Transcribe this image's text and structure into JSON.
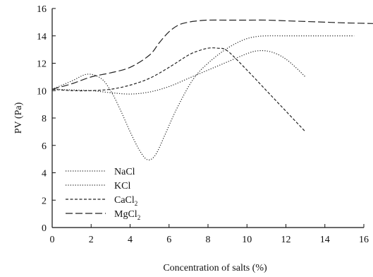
{
  "chart_data": {
    "type": "line",
    "title": "",
    "xlabel": "Concentration of salts (%)",
    "ylabel": "PV (Pa)",
    "xlim": [
      0,
      16
    ],
    "ylim": [
      0,
      16
    ],
    "xticks": [
      0,
      2,
      4,
      6,
      8,
      10,
      12,
      14,
      16
    ],
    "yticks": [
      0,
      2,
      4,
      6,
      8,
      10,
      12,
      14,
      16
    ],
    "grid": false,
    "legend_position": "bottom-left",
    "series": [
      {
        "name": "NaCl",
        "style": "dotted",
        "color": "#222222",
        "x": [
          0,
          1,
          1.8,
          2.5,
          3,
          3.5,
          4,
          4.5,
          4.9,
          5.3,
          5.8,
          6.3,
          7,
          7.5,
          8,
          8.5,
          9,
          9.5,
          10,
          10.5,
          11,
          12,
          13,
          14,
          15.5
        ],
        "y": [
          10.1,
          10.7,
          11.2,
          10.9,
          10.0,
          8.6,
          7.0,
          5.6,
          4.95,
          5.3,
          6.8,
          8.4,
          10.3,
          11.3,
          12.0,
          12.6,
          13.1,
          13.5,
          13.8,
          13.95,
          14.0,
          14.0,
          14.0,
          14.0,
          14.0
        ]
      },
      {
        "name": "KCl",
        "style": "dotted",
        "color": "#222222",
        "x": [
          0,
          1,
          2,
          3,
          4,
          5,
          6,
          7,
          8,
          9,
          10,
          10.5,
          11,
          11.5,
          12,
          12.5,
          13
        ],
        "y": [
          10.1,
          10.05,
          10.0,
          9.85,
          9.75,
          9.9,
          10.3,
          10.9,
          11.5,
          12.1,
          12.7,
          12.9,
          12.9,
          12.7,
          12.3,
          11.7,
          11.0
        ]
      },
      {
        "name": "CaCl2",
        "style": "dashed",
        "color": "#222222",
        "x": [
          0,
          1,
          2,
          3,
          4,
          5,
          6,
          7,
          7.5,
          8,
          8.5,
          9,
          10,
          11,
          12,
          13
        ],
        "y": [
          10.1,
          10.0,
          10.0,
          10.1,
          10.4,
          10.9,
          11.7,
          12.6,
          12.9,
          13.1,
          13.1,
          12.9,
          11.5,
          10.0,
          8.5,
          7.0
        ]
      },
      {
        "name": "MgCl2",
        "style": "long-dash",
        "color": "#222222",
        "x": [
          0,
          1,
          2,
          3,
          4,
          5,
          5.5,
          6,
          6.5,
          7,
          7.5,
          8,
          9,
          10,
          11,
          12,
          13,
          14,
          15,
          16.5
        ],
        "y": [
          10.1,
          10.5,
          11.0,
          11.3,
          11.7,
          12.6,
          13.5,
          14.3,
          14.8,
          15.0,
          15.1,
          15.15,
          15.15,
          15.15,
          15.15,
          15.1,
          15.05,
          15.0,
          14.95,
          14.9
        ]
      }
    ],
    "legend": [
      {
        "text": "NaCl",
        "sub": ""
      },
      {
        "text": "KCl",
        "sub": ""
      },
      {
        "text": "CaCl",
        "sub": "2"
      },
      {
        "text": "MgCl",
        "sub": "2"
      }
    ]
  }
}
